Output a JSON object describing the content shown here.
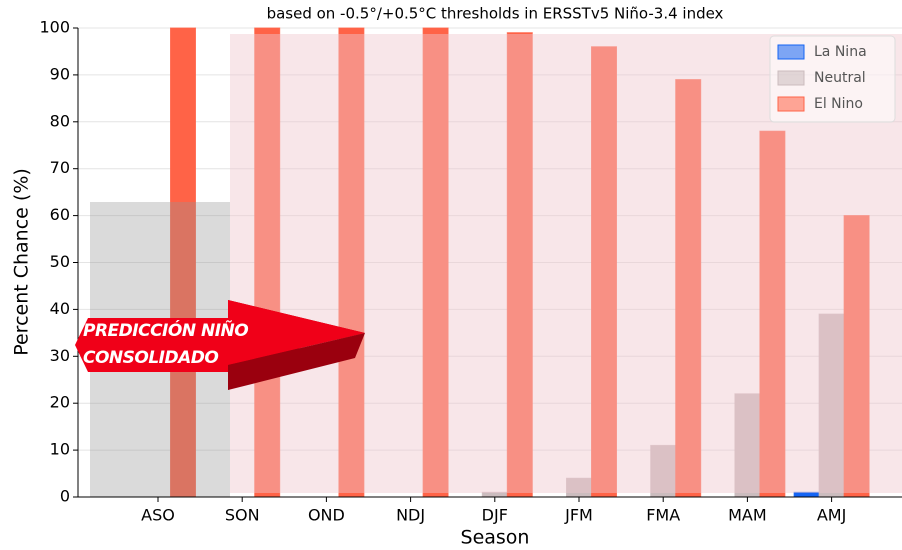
{
  "chart_data": {
    "type": "bar",
    "subtitle": "based on -0.5°/+0.5°C thresholds in ERSSTv5 Niño-3.4 index",
    "xlabel": "Season",
    "ylabel": "Percent Chance (%)",
    "categories": [
      "ASO",
      "SON",
      "OND",
      "NDJ",
      "DJF",
      "JFM",
      "FMA",
      "MAM",
      "AMJ"
    ],
    "series": [
      {
        "name": "La Nina",
        "color": "#1464f4",
        "values": [
          0,
          0,
          0,
          0,
          0,
          0,
          0,
          0,
          1
        ]
      },
      {
        "name": "Neutral",
        "color": "#cbbcbe",
        "values": [
          0,
          0,
          0,
          0,
          1,
          4,
          11,
          22,
          39
        ]
      },
      {
        "name": "El Nino",
        "color": "#ff6347",
        "values": [
          100,
          100,
          100,
          100,
          99,
          96,
          89,
          78,
          60
        ]
      }
    ],
    "ylim": [
      0,
      100
    ],
    "yticks": [
      0,
      10,
      20,
      30,
      40,
      50,
      60,
      70,
      80,
      90,
      100
    ],
    "grid": true,
    "legend": "upper right",
    "annotation": [
      "PREDICCIÓN NIÑO",
      "CONSOLIDADO"
    ]
  }
}
